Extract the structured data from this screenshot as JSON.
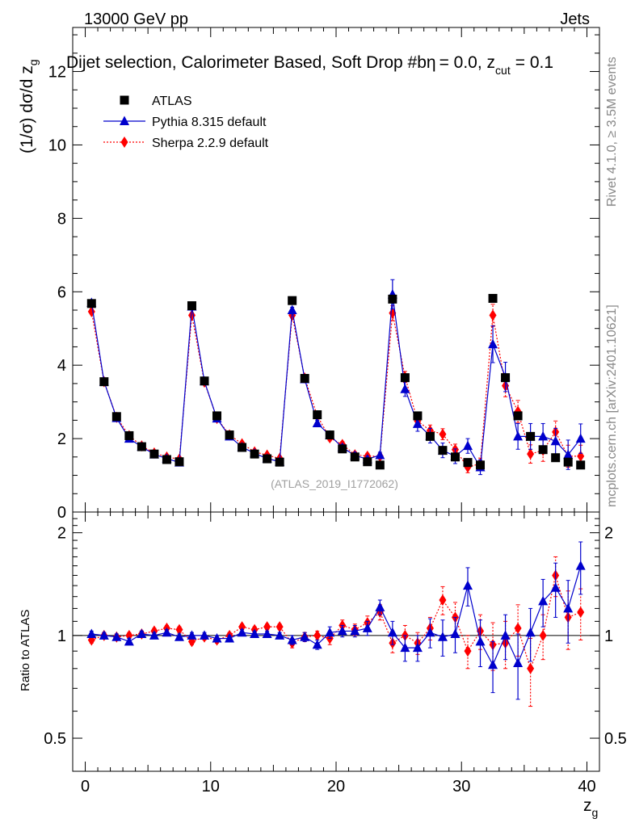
{
  "chart_data": {
    "type": "scatter",
    "header_left": "13000 GeV pp",
    "header_right": "Jets",
    "title": "Dijet selection, Calorimeter Based, Soft Drop #b",
    "title_params": "= 0.0, z",
    "title_sub": "cut",
    "title_end": "= 0.1",
    "title_eta": "η",
    "side_label_top": "Rivet 4.1.0, ≥ 3.5M events",
    "side_label_bottom": "mcplots.cern.ch [arXiv:2401.10621]",
    "watermark": "(ATLAS_2019_I1772062)",
    "ylabel_main": "(1/σ) dσ/d z",
    "ylabel_main_sub": "g",
    "ylabel_ratio": "Ratio to ATLAS",
    "xlabel": "z",
    "xlabel_sub": "g",
    "xlim": [
      -1,
      41
    ],
    "ylim_main": [
      0,
      13.2
    ],
    "ylim_ratio": [
      0.4,
      2.3
    ],
    "main_y_ticks": [
      0,
      2,
      4,
      6,
      8,
      10,
      12
    ],
    "main_y_tick_labels": [
      "0",
      "2",
      "4",
      "6",
      "8",
      "10",
      "12"
    ],
    "ratio_y_ticks": [
      0.5,
      1,
      2
    ],
    "ratio_y_tick_labels": [
      "0.5",
      "1",
      "2"
    ],
    "x_ticks": [
      0,
      10,
      20,
      30,
      40
    ],
    "x_tick_labels": [
      "0",
      "10",
      "20",
      "30",
      "40"
    ],
    "x": [
      0.5,
      1.5,
      2.5,
      3.5,
      4.5,
      5.5,
      6.5,
      7.5,
      8.5,
      9.5,
      10.5,
      11.5,
      12.5,
      13.5,
      14.5,
      15.5,
      16.5,
      17.5,
      18.5,
      19.5,
      20.5,
      21.5,
      22.5,
      23.5,
      24.5,
      25.5,
      26.5,
      27.5,
      28.5,
      29.5,
      30.5,
      31.5,
      32.5,
      33.5,
      34.5,
      35.5,
      36.5,
      37.5,
      38.5,
      39.5
    ],
    "series": [
      {
        "name": "ATLAS",
        "color": "#000000",
        "marker": "square",
        "values": [
          5.68,
          3.55,
          2.6,
          2.08,
          1.78,
          1.58,
          1.43,
          1.37,
          5.62,
          3.57,
          2.62,
          2.1,
          1.76,
          1.58,
          1.45,
          1.36,
          5.76,
          3.64,
          2.65,
          2.1,
          1.72,
          1.5,
          1.37,
          1.28,
          5.8,
          3.66,
          2.62,
          2.06,
          1.68,
          1.5,
          1.35,
          1.28,
          5.82,
          3.66,
          2.62,
          2.06,
          1.7,
          1.48,
          1.36,
          1.28
        ],
        "errors": [
          0.04,
          0.04,
          0.03,
          0.03,
          0.03,
          0.03,
          0.03,
          0.03,
          0.04,
          0.04,
          0.03,
          0.03,
          0.03,
          0.03,
          0.03,
          0.03,
          0.05,
          0.05,
          0.04,
          0.04,
          0.04,
          0.04,
          0.04,
          0.04,
          0.06,
          0.06,
          0.06,
          0.06,
          0.06,
          0.06,
          0.06,
          0.06,
          0.08,
          0.08,
          0.08,
          0.08,
          0.08,
          0.08,
          0.08,
          0.08
        ]
      },
      {
        "name": "Pythia 8.315 default",
        "color": "#0000cc",
        "marker": "triangle",
        "line": "solid",
        "values": [
          5.7,
          3.55,
          2.56,
          2.0,
          1.78,
          1.57,
          1.46,
          1.35,
          5.6,
          3.56,
          2.55,
          2.06,
          1.77,
          1.6,
          1.46,
          1.37,
          5.5,
          3.62,
          2.42,
          2.09,
          1.76,
          1.54,
          1.44,
          1.55,
          5.93,
          3.35,
          2.4,
          2.08,
          1.68,
          1.52,
          1.8,
          1.22,
          4.57,
          3.68,
          2.06,
          2.06,
          2.06,
          1.93,
          1.56,
          2.0
        ],
        "errors": [
          0.05,
          0.05,
          0.05,
          0.05,
          0.05,
          0.05,
          0.05,
          0.05,
          0.05,
          0.05,
          0.05,
          0.05,
          0.05,
          0.05,
          0.05,
          0.05,
          0.08,
          0.08,
          0.08,
          0.08,
          0.08,
          0.08,
          0.08,
          0.08,
          0.4,
          0.2,
          0.2,
          0.2,
          0.2,
          0.2,
          0.2,
          0.2,
          0.5,
          0.4,
          0.35,
          0.35,
          0.35,
          0.35,
          0.4,
          0.4
        ]
      },
      {
        "name": "Sherpa 2.2.9 default",
        "color": "#ff0000",
        "marker": "diamond",
        "line": "dotted",
        "values": [
          5.46,
          3.55,
          2.58,
          2.08,
          1.8,
          1.61,
          1.5,
          1.44,
          5.36,
          3.54,
          2.55,
          2.1,
          1.86,
          1.64,
          1.55,
          1.46,
          5.36,
          3.65,
          2.62,
          2.02,
          1.84,
          1.56,
          1.52,
          1.52,
          5.42,
          3.68,
          2.48,
          2.22,
          2.12,
          1.7,
          1.22,
          1.32,
          5.36,
          3.44,
          2.74,
          1.58,
          1.68,
          2.18,
          1.52,
          1.52
        ],
        "errors": [
          0.05,
          0.05,
          0.05,
          0.05,
          0.05,
          0.05,
          0.05,
          0.05,
          0.05,
          0.05,
          0.05,
          0.05,
          0.05,
          0.05,
          0.05,
          0.05,
          0.08,
          0.08,
          0.08,
          0.08,
          0.08,
          0.08,
          0.08,
          0.08,
          0.2,
          0.15,
          0.15,
          0.15,
          0.15,
          0.15,
          0.15,
          0.15,
          0.3,
          0.3,
          0.3,
          0.25,
          0.3,
          0.3,
          0.3,
          0.3
        ]
      }
    ],
    "ratio_series": [
      {
        "name": "Pythia 8.315 default",
        "values": [
          1.01,
          1.0,
          0.99,
          0.96,
          1.01,
          1.0,
          1.02,
          0.99,
          1.0,
          1.0,
          0.98,
          0.98,
          1.02,
          1.01,
          1.01,
          1.0,
          0.97,
          0.99,
          0.94,
          1.02,
          1.03,
          1.03,
          1.05,
          1.21,
          1.02,
          0.92,
          0.92,
          1.02,
          0.99,
          1.01,
          1.4,
          0.96,
          0.82,
          1.0,
          0.83,
          1.02,
          1.26,
          1.38,
          1.2,
          1.6
        ],
        "errors": [
          0.02,
          0.02,
          0.02,
          0.02,
          0.02,
          0.02,
          0.02,
          0.02,
          0.02,
          0.02,
          0.02,
          0.02,
          0.02,
          0.02,
          0.02,
          0.02,
          0.03,
          0.03,
          0.03,
          0.04,
          0.04,
          0.04,
          0.05,
          0.06,
          0.08,
          0.08,
          0.08,
          0.1,
          0.12,
          0.12,
          0.18,
          0.15,
          0.14,
          0.15,
          0.18,
          0.18,
          0.2,
          0.25,
          0.25,
          0.28
        ]
      },
      {
        "name": "Sherpa 2.2.9 default",
        "values": [
          0.97,
          1.0,
          0.99,
          1.0,
          1.01,
          1.03,
          1.05,
          1.04,
          0.96,
          0.99,
          0.97,
          1.0,
          1.06,
          1.04,
          1.06,
          1.06,
          0.95,
          0.99,
          1.0,
          0.98,
          1.07,
          1.04,
          1.09,
          1.17,
          0.95,
          1.0,
          0.95,
          1.05,
          1.27,
          1.13,
          0.9,
          1.03,
          0.94,
          0.95,
          1.05,
          0.8,
          1.0,
          1.5,
          1.13,
          1.17
        ],
        "errors": [
          0.02,
          0.02,
          0.02,
          0.02,
          0.02,
          0.02,
          0.02,
          0.02,
          0.02,
          0.02,
          0.02,
          0.02,
          0.02,
          0.02,
          0.02,
          0.02,
          0.03,
          0.03,
          0.03,
          0.04,
          0.04,
          0.04,
          0.05,
          0.06,
          0.06,
          0.07,
          0.07,
          0.08,
          0.12,
          0.12,
          0.1,
          0.12,
          0.15,
          0.15,
          0.18,
          0.18,
          0.15,
          0.2,
          0.22,
          0.2
        ]
      }
    ],
    "legend_position": "top-left"
  }
}
